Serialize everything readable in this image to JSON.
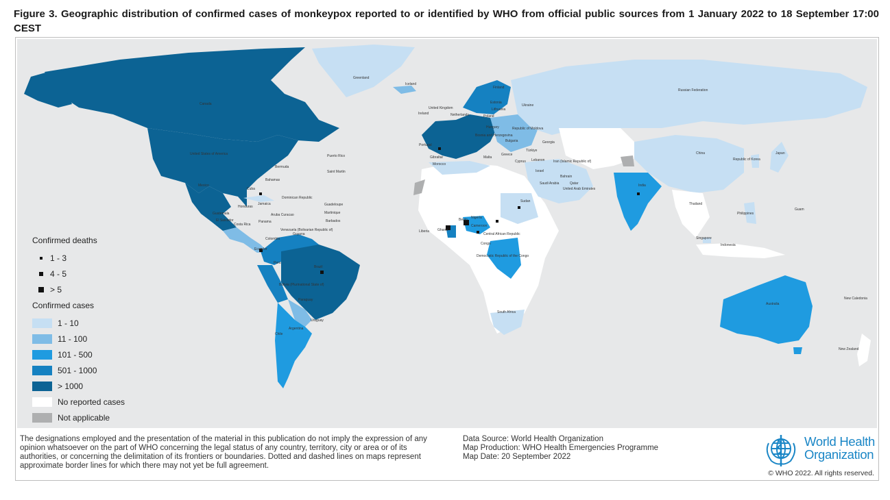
{
  "figure_title": "Figure 3. Geographic distribution of confirmed cases of monkeypox reported to or identified by WHO from official public sources from 1 January 2022 to 18 September 17:00 CEST",
  "colors": {
    "ocean": "#e7e8e9",
    "cases_1_10": "#c6dff3",
    "cases_11_100": "#7fbce6",
    "cases_101_500": "#1f9be0",
    "cases_501_1000": "#1581c1",
    "cases_over_1000": "#0c6394",
    "no_reported": "#ffffff",
    "not_applicable": "#aeafb0"
  },
  "legend": {
    "deaths_title": "Confirmed deaths",
    "deaths": [
      {
        "label": "1 - 3",
        "marker": "small"
      },
      {
        "label": "4 - 5",
        "marker": "medium"
      },
      {
        "label": "> 5",
        "marker": "large"
      }
    ],
    "cases_title": "Confirmed cases",
    "cases": [
      {
        "label": "1 - 10",
        "color": "#c6dff3"
      },
      {
        "label": "11 - 100",
        "color": "#7fbce6"
      },
      {
        "label": "101 - 500",
        "color": "#1f9be0"
      },
      {
        "label": "501 - 1000",
        "color": "#1581c1"
      },
      {
        "label": "> 1000",
        "color": "#0c6394"
      },
      {
        "label": "No reported cases",
        "color": "#ffffff"
      },
      {
        "label": "Not applicable",
        "color": "#aeafb0"
      }
    ]
  },
  "map_labels": {
    "greenland": "Greenland",
    "iceland": "Iceland",
    "canada": "Canada",
    "usa": "United States of America",
    "mexico": "Mexico",
    "bermuda": "Bermuda",
    "puerto_rico": "Puerto Rico",
    "saint_martin": "Saint Martin",
    "bahamas": "Bahamas",
    "cuba": "Cuba",
    "jamaica": "Jamaica",
    "dominican_republic": "Dominican Republic",
    "guadeloupe": "Guadeloupe",
    "martinique": "Martinique",
    "barbados": "Barbados",
    "honduras": "Honduras",
    "guatemala": "Guatemala",
    "el_salvador": "El Salvador",
    "costa_rica": "Costa Rica",
    "panama": "Panama",
    "aruba_curacao": "Aruba Curacao",
    "venezuela": "Venezuela (Bolivarian Republic of)",
    "guyana": "Guyana",
    "colombia": "Colombia",
    "ecuador": "Ecuador",
    "peru": "Peru",
    "brazil": "Brazil",
    "bolivia": "Bolivia (Plurinational State of)",
    "paraguay": "Paraguay",
    "chile": "Chile",
    "argentina": "Argentina",
    "uruguay": "Uruguay",
    "united_kingdom": "United Kingdom",
    "ireland": "Ireland",
    "netherlands": "Netherlands",
    "finland": "Finland",
    "estonia": "Estonia",
    "lithuania": "Lithuania",
    "poland": "Poland",
    "ukraine": "Ukraine",
    "moldova": "Republic of Moldova",
    "hungary": "Hungary",
    "bosnia": "Bosnia and Herzegovina",
    "bulgaria": "Bulgaria",
    "georgia": "Georgia",
    "portugal": "Portugal",
    "gibraltar": "Gibraltar",
    "morocco": "Morocco",
    "malta": "Malta",
    "greece": "Greece",
    "turkiye": "Türkiye",
    "cyprus": "Cyprus",
    "lebanon": "Lebanon",
    "israel": "Israel",
    "iran": "Iran (Islamic Republic of)",
    "saudi_arabia": "Saudi Arabia",
    "bahrain": "Bahrain",
    "qatar": "Qatar",
    "uae": "United Arab Emirates",
    "russia": "Russian Federation",
    "china": "China",
    "korea": "Republic of Korea",
    "japan": "Japan",
    "india": "India",
    "thailand": "Thailand",
    "philippines": "Philippines",
    "guam": "Guam",
    "singapore": "Singapore",
    "indonesia": "Indonesia",
    "sudan": "Sudan",
    "liberia": "Liberia",
    "ghana": "Ghana",
    "benin": "Benin",
    "nigeria": "Nigeria",
    "cameroon": "Cameroon",
    "car": "Central African Republic",
    "congo": "Congo",
    "drc": "Democratic Republic of the Congo",
    "south_africa": "South Africa",
    "australia": "Australia",
    "new_caledonia": "New Caledonia",
    "new_zealand": "New Zealand"
  },
  "disclaimer": "The designations employed and the presentation of the material in this publication do not imply the expression of any opinion whatsoever on the part of WHO concerning the legal status of any country, territory, city or area or of its authorities, or concerning the delimitation of its frontiers or boundaries. Dotted and dashed lines on maps represent approximate border lines for which there may not yet be full agreement.",
  "source": {
    "data_source": "Data Source: World Health Organization",
    "map_production": "Map Production: WHO Health Emergencies Programme",
    "map_date": "Map Date: 20 September 2022"
  },
  "who_name_line1": "World Health",
  "who_name_line2": "Organization",
  "copyright": "© WHO 2022. All rights reserved."
}
